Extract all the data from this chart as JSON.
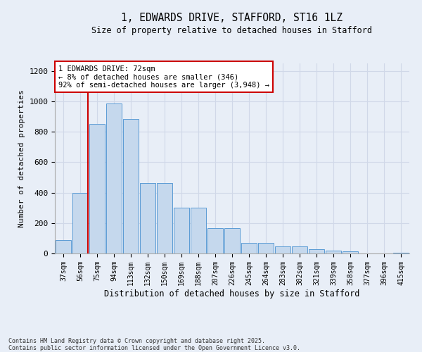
{
  "title_line1": "1, EDWARDS DRIVE, STAFFORD, ST16 1LZ",
  "title_line2": "Size of property relative to detached houses in Stafford",
  "xlabel": "Distribution of detached houses by size in Stafford",
  "ylabel": "Number of detached properties",
  "categories": [
    "37sqm",
    "56sqm",
    "75sqm",
    "94sqm",
    "113sqm",
    "132sqm",
    "150sqm",
    "169sqm",
    "188sqm",
    "207sqm",
    "226sqm",
    "245sqm",
    "264sqm",
    "283sqm",
    "302sqm",
    "321sqm",
    "339sqm",
    "358sqm",
    "377sqm",
    "396sqm",
    "415sqm"
  ],
  "values": [
    90,
    400,
    850,
    985,
    885,
    465,
    465,
    300,
    300,
    165,
    165,
    70,
    70,
    47,
    47,
    30,
    20,
    12,
    0,
    0,
    5
  ],
  "bar_color": "#c5d8ed",
  "bar_edge_color": "#5b9bd5",
  "grid_color": "#d0d8e8",
  "vline_x_index": 1,
  "vline_color": "#cc0000",
  "annotation_text": "1 EDWARDS DRIVE: 72sqm\n← 8% of detached houses are smaller (346)\n92% of semi-detached houses are larger (3,948) →",
  "annotation_box_color": "#cc0000",
  "ylim": [
    0,
    1250
  ],
  "yticks": [
    0,
    200,
    400,
    600,
    800,
    1000,
    1200
  ],
  "footnote": "Contains HM Land Registry data © Crown copyright and database right 2025.\nContains public sector information licensed under the Open Government Licence v3.0.",
  "bg_color": "#e8eef7"
}
